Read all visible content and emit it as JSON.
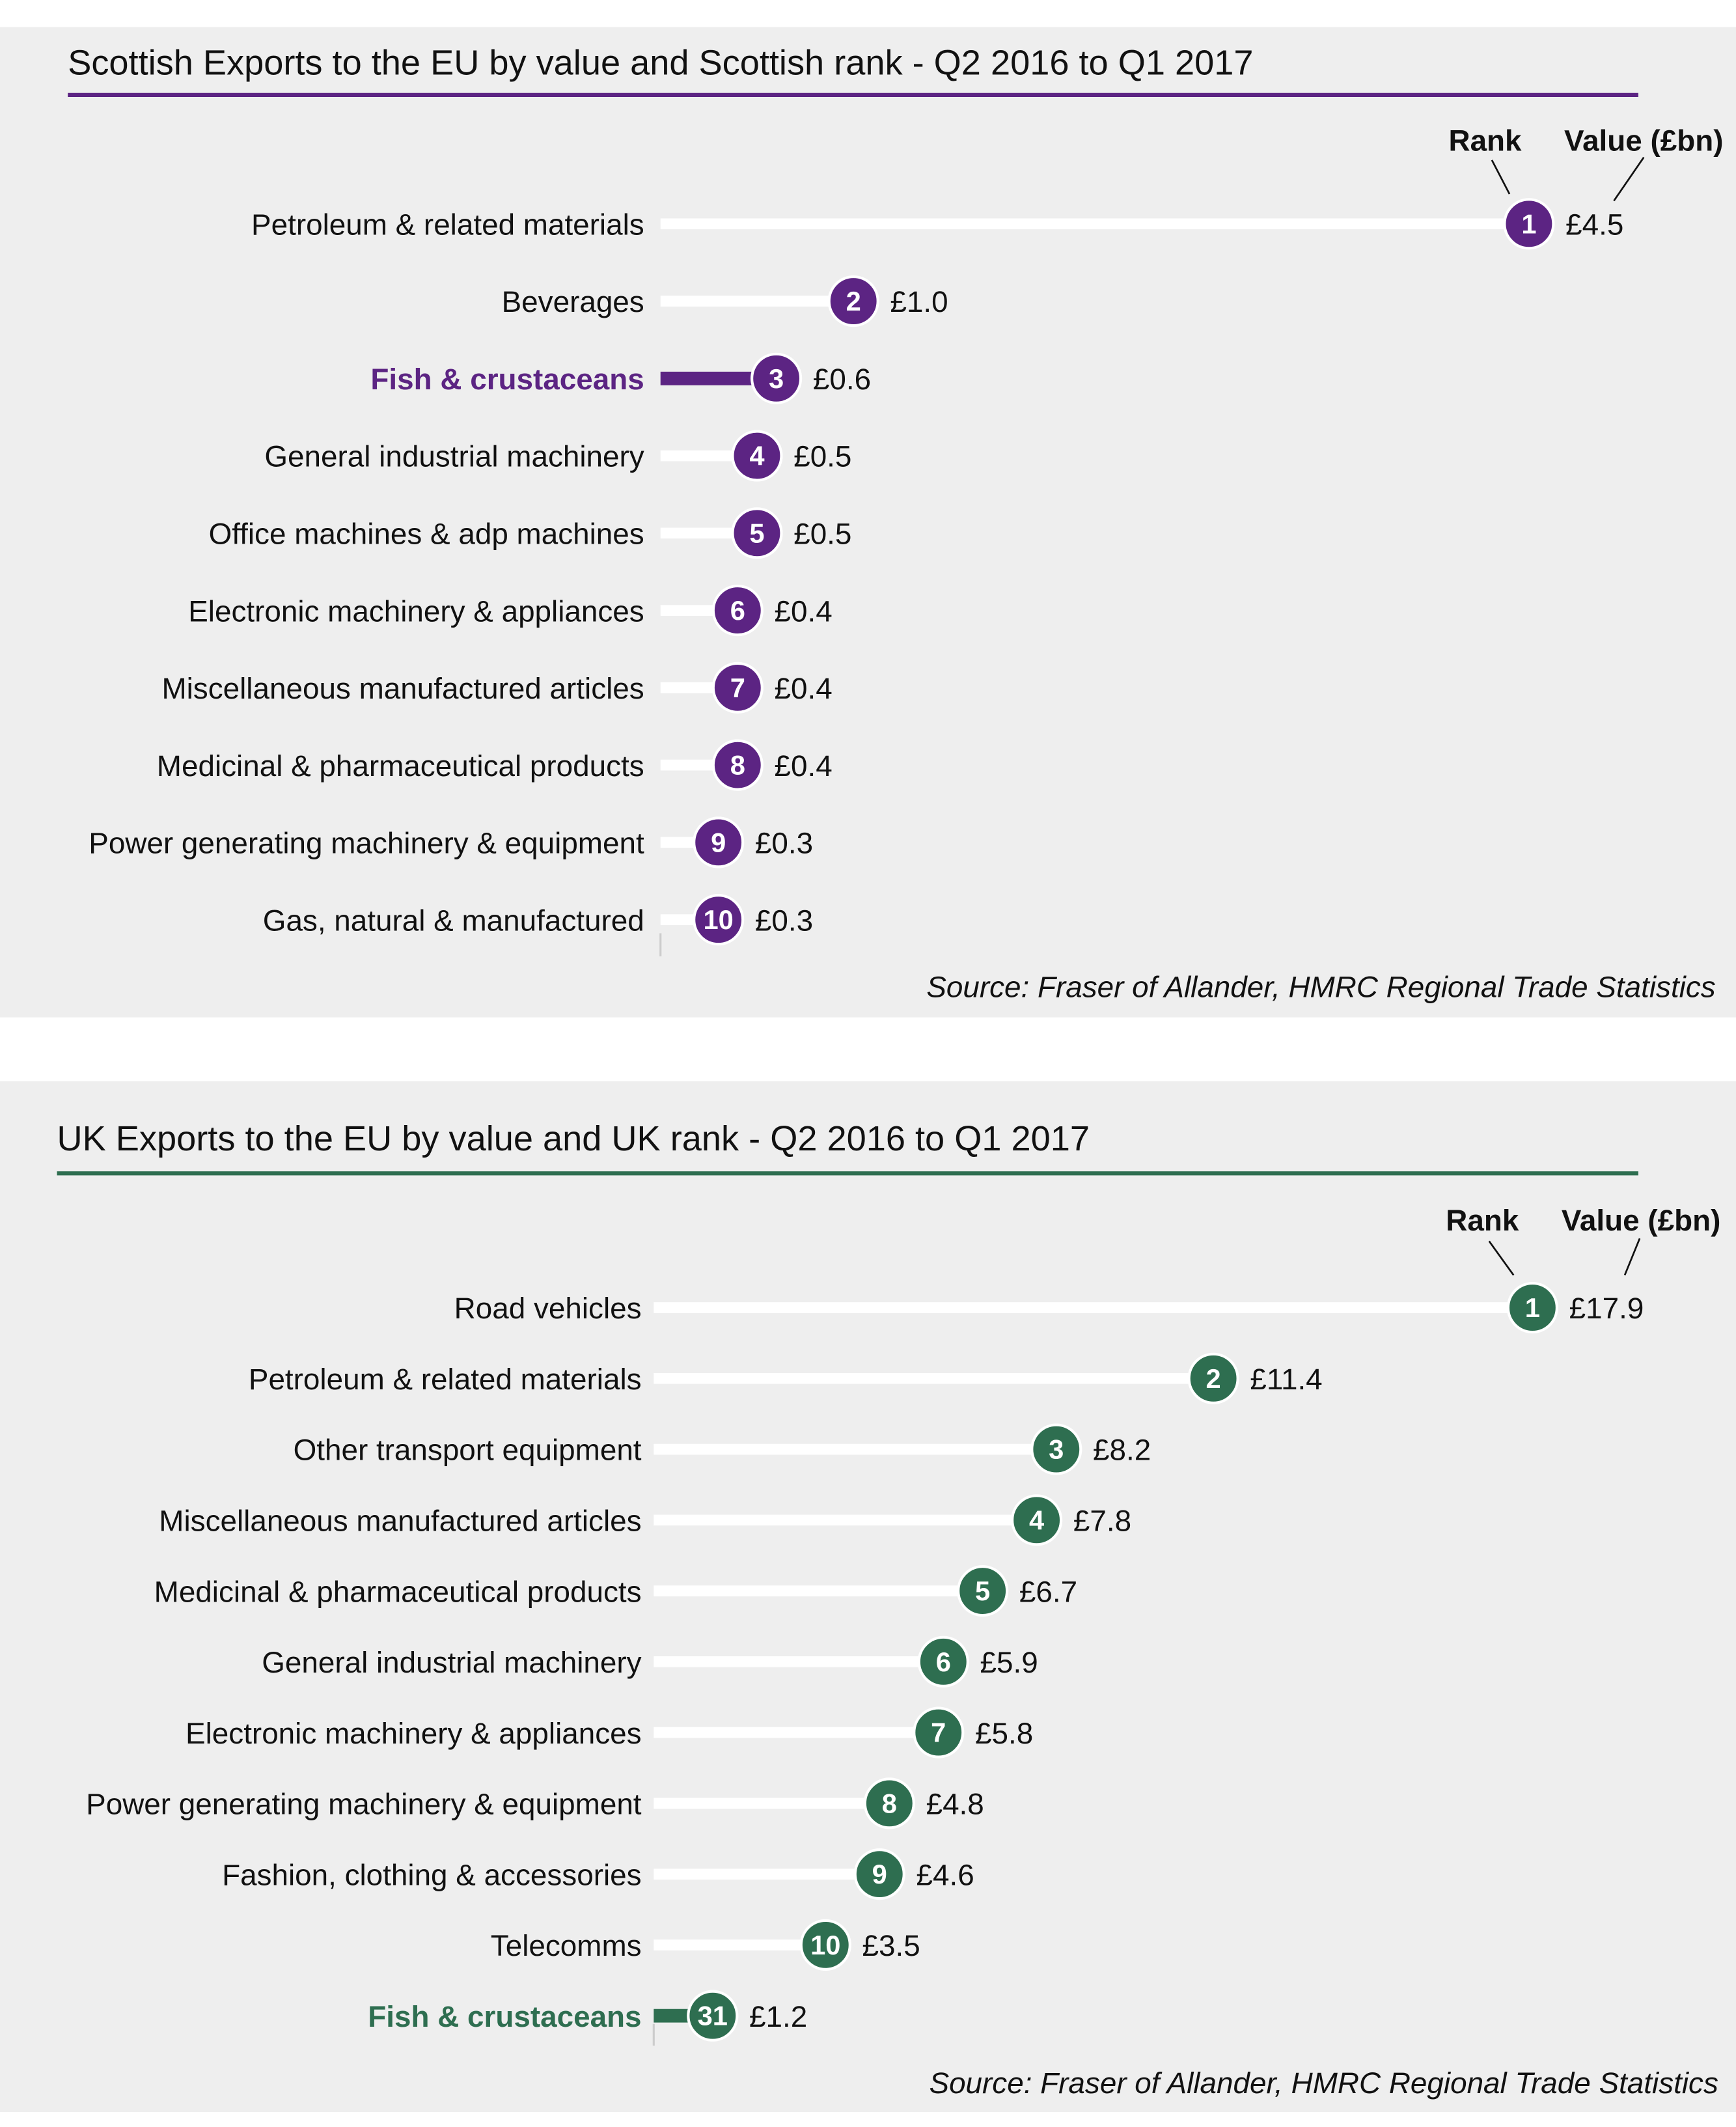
{
  "chart_data": [
    {
      "type": "bar",
      "title": "Scottish Exports to the EU by value and Scottish rank - Q2 2016 to Q1 2017",
      "rank_header": "Rank",
      "value_header": "Value (£bn)",
      "source": "Source: Fraser of Allander, HMRC Regional Trade Statistics",
      "accent": "#5c2483",
      "highlight": "Fish & crustaceans",
      "categories": [
        "Petroleum & related materials",
        "Beverages",
        "Fish & crustaceans",
        "General industrial machinery",
        "Office machines & adp machines",
        "Electronic machinery & appliances",
        "Miscellaneous manufactured articles",
        "Medicinal & pharmaceutical products",
        "Power generating machinery & equipment",
        "Gas, natural & manufactured"
      ],
      "values": [
        4.5,
        1.0,
        0.6,
        0.5,
        0.5,
        0.4,
        0.4,
        0.4,
        0.3,
        0.3
      ],
      "value_labels": [
        "£4.5",
        "£1.0",
        "£0.6",
        "£0.5",
        "£0.5",
        "£0.4",
        "£0.4",
        "£0.4",
        "£0.3",
        "£0.3"
      ],
      "ranks": [
        "1",
        "2",
        "3",
        "4",
        "5",
        "6",
        "7",
        "8",
        "9",
        "10"
      ],
      "xlim": [
        0,
        4.5
      ]
    },
    {
      "type": "bar",
      "title": "UK Exports to the EU by value and UK rank - Q2 2016 to Q1 2017",
      "rank_header": "Rank",
      "value_header": "Value (£bn)",
      "source": "Source: Fraser of Allander, HMRC Regional Trade Statistics",
      "accent": "#2e6e50",
      "highlight": "Fish & crustaceans",
      "categories": [
        "Road vehicles",
        "Petroleum & related materials",
        "Other transport equipment",
        "Miscellaneous manufactured articles",
        "Medicinal & pharmaceutical products",
        "General industrial machinery",
        "Electronic machinery & appliances",
        "Power generating machinery & equipment",
        "Fashion, clothing & accessories",
        "Telecomms",
        "Fish & crustaceans"
      ],
      "values": [
        17.9,
        11.4,
        8.2,
        7.8,
        6.7,
        5.9,
        5.8,
        4.8,
        4.6,
        3.5,
        1.2
      ],
      "value_labels": [
        "£17.9",
        "£11.4",
        "£8.2",
        "£7.8",
        "£6.7",
        "£5.9",
        "£5.8",
        "£4.8",
        "£4.6",
        "£3.5",
        "£1.2"
      ],
      "ranks": [
        "1",
        "2",
        "3",
        "4",
        "5",
        "6",
        "7",
        "8",
        "9",
        "10",
        "31"
      ],
      "xlim": [
        0,
        17.9
      ]
    }
  ]
}
